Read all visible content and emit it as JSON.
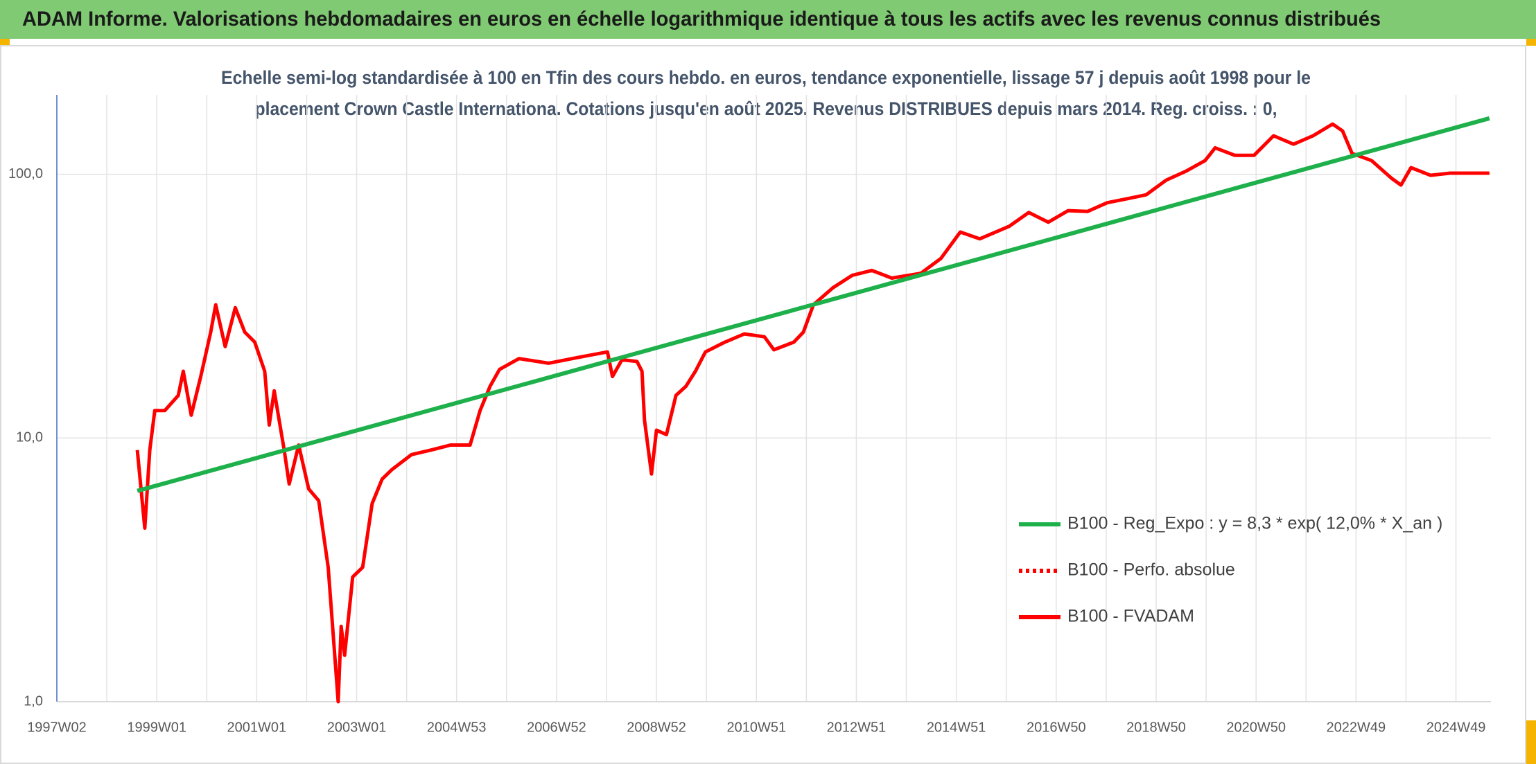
{
  "header": {
    "title": "ADAM Informe. Valorisations hebdomadaires en euros en échelle logarithmique identique à tous les actifs avec les revenus connus distribués"
  },
  "chart_data": {
    "type": "line",
    "subtitle": [
      "Echelle semi-log standardisée à 100 en Tfin des cours hebdo. en euros, tendance exponentielle, lissage 57 j depuis août 1998 pour le",
      "placement Crown Castle Internationa. Cotations jusqu'en août 2025. Revenus DISTRIBUES depuis mars 2014. Reg. croiss. : 0,"
    ],
    "log_y": true,
    "grid": true,
    "legend": "right",
    "ylim": [
      1,
      200
    ],
    "yticks": [
      {
        "value": 1,
        "label": "1,0"
      },
      {
        "value": 10,
        "label": "10,0"
      },
      {
        "value": 100,
        "label": "100,0"
      }
    ],
    "xlim": [
      1997.0,
      2025.7
    ],
    "xticks": [
      {
        "value": 1997,
        "label": "1997W02"
      },
      {
        "value": 1999,
        "label": "1999W01"
      },
      {
        "value": 2001,
        "label": "2001W01"
      },
      {
        "value": 2003,
        "label": "2003W01"
      },
      {
        "value": 2005,
        "label": "2004W53"
      },
      {
        "value": 2007,
        "label": "2006W52"
      },
      {
        "value": 2009,
        "label": "2008W52"
      },
      {
        "value": 2011,
        "label": "2010W51"
      },
      {
        "value": 2013,
        "label": "2012W51"
      },
      {
        "value": 2015,
        "label": "2014W51"
      },
      {
        "value": 2017,
        "label": "2016W50"
      },
      {
        "value": 2019,
        "label": "2018W50"
      },
      {
        "value": 2021,
        "label": "2020W50"
      },
      {
        "value": 2023,
        "label": "2022W49"
      },
      {
        "value": 2025,
        "label": "2024W49"
      }
    ],
    "xminor": [
      1998,
      2000,
      2002,
      2004,
      2006,
      2008,
      2010,
      2012,
      2014,
      2016,
      2018,
      2020,
      2022,
      2024
    ],
    "series": [
      {
        "name": "B100 - Reg_Expo : y = 8,3 * exp( 12,0% *  X_an )",
        "color": "#1db04b",
        "style": "solid",
        "x": [
          1998.61,
          2025.67
        ],
        "values": [
          6.3,
          163
        ]
      },
      {
        "name": "B100 - Perfo. absolue",
        "color": "#ff0000",
        "style": "dotted",
        "x": [],
        "values": []
      },
      {
        "name": "B100 - FVADAM",
        "color": "#ff0000",
        "style": "solid",
        "x": [
          1998.61,
          1998.76,
          1998.86,
          1998.96,
          1999.16,
          1999.43,
          1999.53,
          1999.69,
          1999.88,
          2000.08,
          2000.18,
          2000.37,
          2000.57,
          2000.76,
          2000.96,
          2001.16,
          2001.25,
          2001.35,
          2001.55,
          2001.65,
          2001.84,
          2002.04,
          2002.24,
          2002.43,
          2002.63,
          2002.69,
          2002.76,
          2002.92,
          2003.12,
          2003.31,
          2003.51,
          2003.71,
          2004.1,
          2004.49,
          2004.88,
          2005.27,
          2005.47,
          2005.67,
          2005.86,
          2006.25,
          2006.84,
          2007.43,
          2008.02,
          2008.12,
          2008.31,
          2008.61,
          2008.71,
          2008.76,
          2008.9,
          2009.0,
          2009.2,
          2009.39,
          2009.59,
          2009.78,
          2009.98,
          2010.37,
          2010.76,
          2011.16,
          2011.35,
          2011.75,
          2011.94,
          2012.14,
          2012.53,
          2012.92,
          2013.31,
          2013.71,
          2014.29,
          2014.69,
          2015.08,
          2015.47,
          2016.06,
          2016.45,
          2016.84,
          2017.24,
          2017.63,
          2018.02,
          2018.41,
          2018.8,
          2019.2,
          2019.59,
          2019.98,
          2020.18,
          2020.57,
          2020.96,
          2021.35,
          2021.75,
          2022.14,
          2022.53,
          2022.73,
          2022.92,
          2023.31,
          2023.71,
          2023.9,
          2024.1,
          2024.49,
          2024.88,
          2025.27,
          2025.67
        ],
        "values": [
          9.0,
          4.55,
          9.0,
          12.7,
          12.7,
          14.5,
          17.9,
          12.2,
          17.1,
          25.2,
          32.0,
          22.2,
          31.2,
          25.2,
          23.1,
          17.9,
          11.2,
          15.1,
          9.0,
          6.69,
          9.4,
          6.41,
          5.78,
          3.23,
          1.0,
          1.93,
          1.5,
          2.97,
          3.23,
          5.64,
          6.98,
          7.6,
          8.65,
          9.0,
          9.4,
          9.4,
          12.7,
          15.7,
          18.2,
          20.0,
          19.2,
          20.2,
          21.2,
          17.1,
          19.8,
          19.5,
          17.9,
          11.7,
          7.3,
          10.7,
          10.3,
          14.5,
          15.7,
          17.9,
          21.2,
          23.1,
          24.8,
          24.2,
          21.6,
          23.1,
          25.2,
          32.0,
          37.1,
          41.4,
          43.2,
          40.4,
          42.1,
          47.9,
          60.4,
          56.9,
          63.5,
          71.6,
          65.8,
          72.8,
          72.3,
          78.0,
          80.7,
          83.6,
          95.0,
          102.6,
          112.7,
          126,
          118,
          118,
          140,
          130,
          140,
          155,
          146,
          120,
          112.7,
          96.6,
          91.0,
          106,
          99.1,
          101,
          101,
          101
        ]
      }
    ]
  }
}
